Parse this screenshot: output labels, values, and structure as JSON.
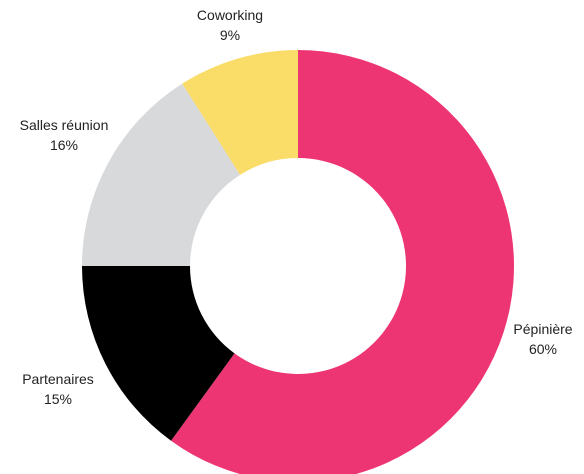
{
  "chart_data": {
    "type": "pie",
    "title": "",
    "donut": true,
    "slices": [
      {
        "name": "Pépinière",
        "value": 60,
        "label_value": "60%",
        "color": "#ee3573"
      },
      {
        "name": "Partenaires",
        "value": 15,
        "label_value": "15%",
        "color": "#000000"
      },
      {
        "name": "Salles réunion",
        "value": 16,
        "label_value": "16%",
        "color": "#d8d9db"
      },
      {
        "name": "Coworking",
        "value": 9,
        "label_value": "9%",
        "color": "#fadc68"
      }
    ],
    "start_angle": "top",
    "direction": "clockwise",
    "legend": "none",
    "labels": "outside"
  }
}
